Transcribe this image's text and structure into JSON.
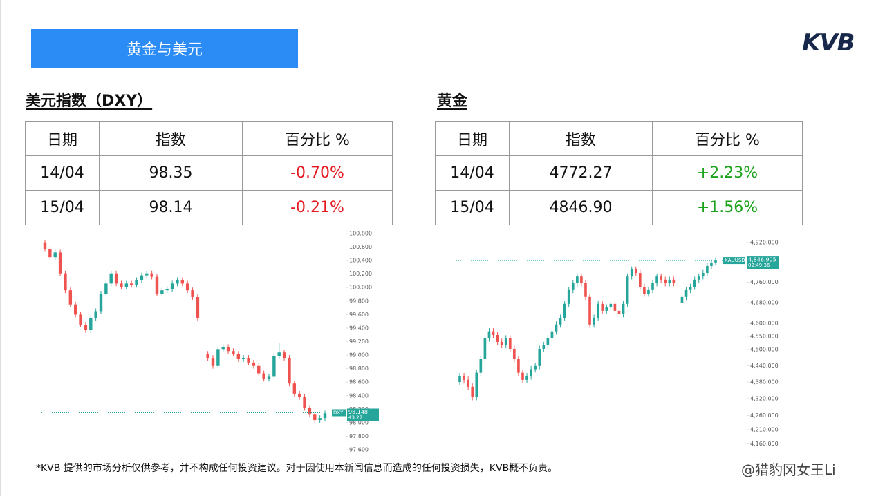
{
  "banner": "黄金与美元",
  "logo": "KVB",
  "tables": [
    {
      "title": "美元指数（DXY）",
      "header": [
        "日期",
        "指数",
        "百分比 %"
      ],
      "rows": [
        [
          "14/04",
          "98.35",
          "-0.70%"
        ],
        [
          "15/04",
          "98.14",
          "-0.21%"
        ]
      ]
    },
    {
      "title": "黄金",
      "header": [
        "日期",
        "指数",
        "百分比 %"
      ],
      "rows": [
        [
          "14/04",
          "4772.27",
          "+2.23%"
        ],
        [
          "15/04",
          "4846.90",
          "+1.56%"
        ]
      ]
    }
  ],
  "charts": [
    {
      "type": "candlestick",
      "symbol": "DXY",
      "last_price": 98.148,
      "countdown": "43:27",
      "log_scale": false,
      "up_color": "#26a69a",
      "down_color": "#ef5350",
      "ylim": [
        97.55,
        100.82
      ],
      "yticks": [
        {
          "value": 100.8,
          "label": "100.800"
        },
        {
          "value": 100.6,
          "label": "100.600"
        },
        {
          "value": 100.4,
          "label": "100.400"
        },
        {
          "value": 100.2,
          "label": "100.200"
        },
        {
          "value": 100,
          "label": "100.000"
        },
        {
          "value": 99.8,
          "label": "99.800"
        },
        {
          "value": 99.6,
          "label": "99.600"
        },
        {
          "value": 99.4,
          "label": "99.400"
        },
        {
          "value": 99.2,
          "label": "99.200"
        },
        {
          "value": 99,
          "label": "99.000"
        },
        {
          "value": 98.8,
          "label": "98.800"
        },
        {
          "value": 98.6,
          "label": "98.600"
        },
        {
          "value": 98.4,
          "label": "98.400"
        },
        {
          "value": 98.2,
          "label": "98.200"
        },
        {
          "value": 98,
          "label": "98.000"
        },
        {
          "value": 97.8,
          "label": "97.800"
        },
        {
          "value": 97.6,
          "label": "97.600"
        }
      ],
      "candles": [
        [
          100.66,
          100.7,
          100.53,
          100.57
        ],
        [
          100.57,
          100.61,
          100.41,
          100.45
        ],
        [
          100.45,
          100.56,
          100.41,
          100.52
        ],
        [
          100.52,
          100.56,
          100.17,
          100.21
        ],
        [
          100.21,
          100.25,
          99.92,
          99.96
        ],
        [
          99.96,
          100.0,
          99.71,
          99.75
        ],
        [
          99.75,
          99.79,
          99.56,
          99.6
        ],
        [
          99.6,
          99.64,
          99.41,
          99.45
        ],
        [
          99.45,
          99.49,
          99.33,
          99.37
        ],
        [
          99.37,
          99.59,
          99.33,
          99.55
        ],
        [
          99.55,
          99.69,
          99.51,
          99.65
        ],
        [
          99.65,
          99.95,
          99.61,
          99.91
        ],
        [
          99.91,
          100.1,
          99.87,
          100.06
        ],
        [
          100.06,
          100.25,
          100.02,
          100.21
        ],
        [
          100.21,
          100.25,
          100.02,
          100.06
        ],
        [
          100.06,
          100.1,
          99.97,
          100.01
        ],
        [
          100.01,
          100.1,
          99.97,
          100.06
        ],
        [
          100.06,
          100.1,
          100.0,
          100.04
        ],
        [
          100.04,
          100.15,
          100.0,
          100.11
        ],
        [
          100.11,
          100.22,
          100.07,
          100.18
        ],
        [
          100.18,
          100.25,
          100.14,
          100.21
        ],
        [
          100.21,
          100.25,
          100.12,
          100.16
        ],
        [
          100.16,
          100.2,
          99.87,
          99.91
        ],
        [
          99.91,
          100.0,
          99.87,
          99.96
        ],
        [
          99.96,
          100.02,
          99.92,
          99.98
        ],
        [
          99.98,
          100.1,
          99.94,
          100.06
        ],
        [
          100.06,
          100.15,
          100.02,
          100.11
        ],
        [
          100.11,
          100.15,
          100.02,
          100.06
        ],
        [
          100.06,
          100.1,
          99.92,
          99.96
        ],
        [
          99.96,
          100.0,
          99.82,
          99.86
        ],
        [
          99.86,
          99.9,
          99.51,
          99.55
        ],
        null,
        [
          99.02,
          99.06,
          98.92,
          98.96
        ],
        [
          98.96,
          99.0,
          98.8,
          98.84
        ],
        [
          98.84,
          99.13,
          98.8,
          99.09
        ],
        [
          99.09,
          99.16,
          99.05,
          99.12
        ],
        [
          99.12,
          99.16,
          99.02,
          99.06
        ],
        [
          99.06,
          99.1,
          98.98,
          99.02
        ],
        [
          99.02,
          99.06,
          98.9,
          98.94
        ],
        [
          98.94,
          99.0,
          98.9,
          98.96
        ],
        [
          98.96,
          99.0,
          98.85,
          98.89
        ],
        [
          98.89,
          98.93,
          98.8,
          98.84
        ],
        [
          98.84,
          98.88,
          98.69,
          98.73
        ],
        [
          98.73,
          98.77,
          98.61,
          98.65
        ],
        [
          98.65,
          98.72,
          98.61,
          98.68
        ],
        [
          98.68,
          99.03,
          98.64,
          98.99
        ],
        [
          98.99,
          99.18,
          98.95,
          99.04
        ],
        [
          99.04,
          99.08,
          98.92,
          98.96
        ],
        [
          98.96,
          99.0,
          98.54,
          98.58
        ],
        [
          98.58,
          98.62,
          98.39,
          98.43
        ],
        [
          98.43,
          98.47,
          98.34,
          98.38
        ],
        [
          98.38,
          98.42,
          98.18,
          98.22
        ],
        [
          98.22,
          98.26,
          98.08,
          98.12
        ],
        [
          98.12,
          98.16,
          98.0,
          98.04
        ],
        [
          98.04,
          98.11,
          98.0,
          98.07
        ],
        [
          98.07,
          98.18,
          98.03,
          98.14
        ]
      ]
    },
    {
      "type": "candlestick",
      "symbol": "XAUUSD",
      "last_price": {
        "value": 4846.905,
        "label": "4,846.905"
      },
      "countdown": "02:49:36",
      "log_scale": true,
      "up_color": "#26a69a",
      "down_color": "#ef5350",
      "ylim": [
        4140,
        4960
      ],
      "yticks": [
        {
          "value": 4920,
          "label": "4,920.000"
        },
        {
          "value": 4760,
          "label": "4,760.000"
        },
        {
          "value": 4680,
          "label": "4,680.000"
        },
        {
          "value": 4600,
          "label": "4,600.000"
        },
        {
          "value": 4550,
          "label": "4,550.000"
        },
        {
          "value": 4500,
          "label": "4,500.000"
        },
        {
          "value": 4440,
          "label": "4,440.000"
        },
        {
          "value": 4380,
          "label": "4,380.000"
        },
        {
          "value": 4320,
          "label": "4,320.000"
        },
        {
          "value": 4260,
          "label": "4,260.000"
        },
        {
          "value": 4210,
          "label": "4,210.000"
        },
        {
          "value": 4160,
          "label": "4,160.000"
        }
      ],
      "candles": [
        [
          4380,
          4413,
          4368,
          4401
        ],
        [
          4401,
          4413,
          4376,
          4388
        ],
        [
          4388,
          4400,
          4351,
          4363
        ],
        [
          4363,
          4375,
          4314,
          4326
        ],
        [
          4326,
          4426,
          4314,
          4414
        ],
        [
          4414,
          4477,
          4402,
          4465
        ],
        [
          4465,
          4554,
          4453,
          4542
        ],
        [
          4542,
          4581,
          4530,
          4569
        ],
        [
          4569,
          4581,
          4543,
          4555
        ],
        [
          4555,
          4567,
          4517,
          4529
        ],
        [
          4529,
          4541,
          4505,
          4517
        ],
        [
          4517,
          4554,
          4505,
          4542
        ],
        [
          4542,
          4554,
          4491,
          4503
        ],
        [
          4503,
          4515,
          4453,
          4465
        ],
        [
          4465,
          4477,
          4402,
          4414
        ],
        [
          4414,
          4426,
          4376,
          4388
        ],
        [
          4388,
          4413,
          4376,
          4401
        ],
        [
          4401,
          4439,
          4389,
          4427
        ],
        [
          4427,
          4451,
          4415,
          4439
        ],
        [
          4439,
          4515,
          4427,
          4503
        ],
        [
          4503,
          4529,
          4491,
          4517
        ],
        [
          4517,
          4554,
          4505,
          4542
        ],
        [
          4542,
          4581,
          4530,
          4569
        ],
        [
          4569,
          4607,
          4557,
          4595
        ],
        [
          4595,
          4633,
          4583,
          4621
        ],
        [
          4621,
          4687,
          4609,
          4675
        ],
        [
          4675,
          4741,
          4663,
          4729
        ],
        [
          4729,
          4768,
          4717,
          4756
        ],
        [
          4756,
          4795,
          4744,
          4783
        ],
        [
          4783,
          4795,
          4744,
          4756
        ],
        [
          4756,
          4768,
          4690,
          4702
        ],
        [
          4702,
          4714,
          4583,
          4595
        ],
        [
          4595,
          4633,
          4583,
          4621
        ],
        [
          4621,
          4687,
          4609,
          4675
        ],
        [
          4675,
          4687,
          4636,
          4648
        ],
        [
          4648,
          4673,
          4636,
          4661
        ],
        [
          4661,
          4687,
          4649,
          4675
        ],
        [
          4675,
          4687,
          4636,
          4648
        ],
        [
          4648,
          4660,
          4623,
          4635
        ],
        [
          4635,
          4687,
          4623,
          4675
        ],
        [
          4675,
          4795,
          4663,
          4783
        ],
        [
          4783,
          4823,
          4771,
          4811
        ],
        [
          4811,
          4823,
          4785,
          4797
        ],
        [
          4797,
          4809,
          4730,
          4742
        ],
        [
          4742,
          4754,
          4703,
          4715
        ],
        [
          4715,
          4741,
          4703,
          4729
        ],
        [
          4729,
          4768,
          4717,
          4756
        ],
        [
          4756,
          4795,
          4744,
          4783
        ],
        [
          4783,
          4795,
          4758,
          4770
        ],
        [
          4770,
          4782,
          4744,
          4756
        ],
        [
          4756,
          4782,
          4744,
          4770
        ],
        [
          4770,
          4782,
          4744,
          4756
        ],
        null,
        [
          4680,
          4714,
          4668,
          4702
        ],
        [
          4702,
          4741,
          4690,
          4729
        ],
        [
          4729,
          4754,
          4717,
          4742
        ],
        [
          4742,
          4782,
          4730,
          4770
        ],
        [
          4770,
          4795,
          4758,
          4783
        ],
        [
          4783,
          4809,
          4771,
          4797
        ],
        [
          4797,
          4837,
          4785,
          4825
        ],
        [
          4825,
          4851,
          4813,
          4839
        ],
        [
          4839,
          4859,
          4827,
          4847
        ]
      ]
    }
  ],
  "disclaimer": "*KVB 提供的市场分析仅供参考，并不构成任何投资建议。对于因使用本新闻信息而造成的任何投资损失，KVB概不负责。",
  "watermark": "@猎豹冈女王Li"
}
